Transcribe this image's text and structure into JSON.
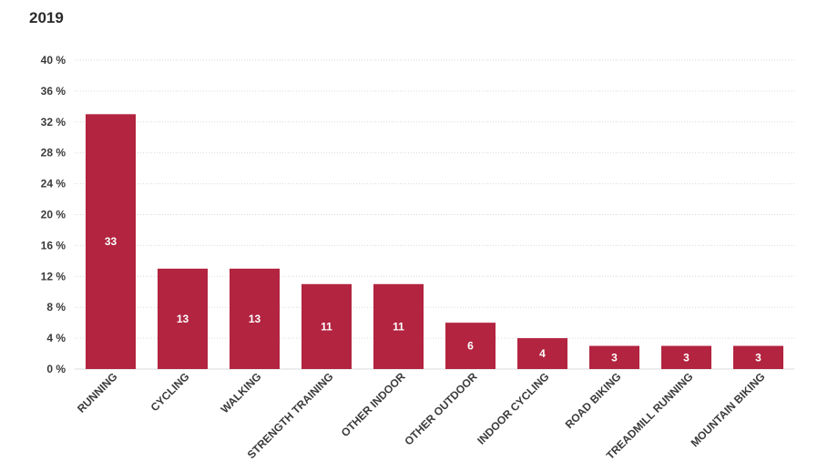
{
  "chart_data": {
    "type": "bar",
    "title": "2019",
    "xlabel": "",
    "ylabel": "",
    "ylim": [
      0,
      40
    ],
    "yticks": [
      "0 %",
      "4 %",
      "8 %",
      "12 %",
      "16 %",
      "20 %",
      "24 %",
      "28 %",
      "32 %",
      "36 %",
      "40 %"
    ],
    "categories": [
      "RUNNING",
      "CYCLING",
      "WALKING",
      "STRENGTH TRAINING",
      "OTHER INDOOR",
      "OTHER OUTDOOR",
      "INDOOR CYCLING",
      "ROAD BIKING",
      "TREADMILL RUNNING",
      "MOUNTAIN BIKING"
    ],
    "values": [
      33,
      13,
      13,
      11,
      11,
      6,
      4,
      3,
      3,
      3
    ],
    "data_labels": [
      "33",
      "13",
      "13",
      "11",
      "11",
      "6",
      "4",
      "3",
      "3",
      "3"
    ],
    "grid": true,
    "bar_color": "#b22440",
    "grid_color": "#d9d9d9"
  }
}
